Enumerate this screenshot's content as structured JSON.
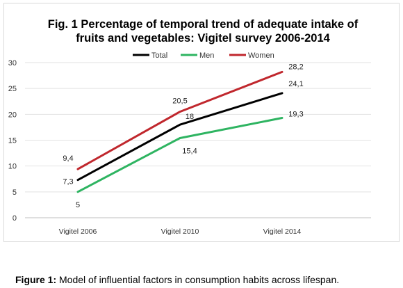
{
  "chart_data": {
    "type": "line",
    "title_lines": [
      "Fig. 1 Percentage of temporal trend of adequate intake of",
      "fruits and vegetables: Vigitel survey 2006-2014"
    ],
    "categories": [
      "Vigitel 2006",
      "Vigitel 2010",
      "Vigitel 2014"
    ],
    "series": [
      {
        "name": "Total",
        "color": "#000000",
        "values": [
          7.3,
          18,
          24.1
        ],
        "labels": [
          "7,3",
          "18",
          "24,1"
        ]
      },
      {
        "name": "Men",
        "color": "#2eb461",
        "values": [
          5,
          15.4,
          19.3
        ],
        "labels": [
          "5",
          "15,4",
          "19,3"
        ]
      },
      {
        "name": "Women",
        "color": "#c0272d",
        "values": [
          9.4,
          20.5,
          28.2
        ],
        "labels": [
          "9,4",
          "20,5",
          "28,2"
        ]
      }
    ],
    "yticks": [
      "0",
      "5",
      "10",
      "15",
      "20",
      "25",
      "30"
    ],
    "ylim": [
      0,
      30
    ],
    "grid": true,
    "legend_position": "top-center"
  },
  "caption": {
    "label": "Figure 1:",
    "text": " Model of influential factors in consumption habits across lifespan."
  }
}
